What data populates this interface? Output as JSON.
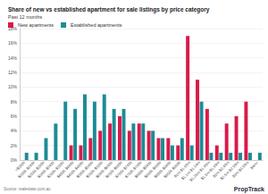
{
  "chart_data": {
    "type": "bar",
    "title": "Share of new vs established apartment for sale listings by price category",
    "subtitle": "Past 12 months",
    "annotations": [
      "Source: realestate.com.au",
      "PropTrack"
    ],
    "categories": [
      "<$200k",
      "$200k-$249k",
      "$250k-$299k",
      "$300k-$349k",
      "$350k-$399k",
      "$400k-$449k",
      "$450k-$499k",
      "$500k-$549k",
      "$550k-$599k",
      "$600k-$649k",
      "$650k-$699k",
      "$700k-$749k",
      "$750k-$799k",
      "$800k-$849k",
      "$850k-$899k",
      "$900k-$949k",
      "$950k-$999k",
      "$1m-$1.09m",
      "$1.1m-$1.24m",
      "$1.25m-$1.49m",
      "$1.5m-$1.99m",
      "$2m-$2.49m",
      "$2.5m-$2.99m",
      "$3m-$3.99m",
      "$4m+"
    ],
    "series": [
      {
        "name": "New apartments",
        "color": "#d91a4b",
        "values": [
          0,
          0,
          0,
          0,
          0,
          2,
          2,
          3,
          4,
          5,
          6,
          4,
          5,
          4,
          3,
          3,
          2,
          17,
          11,
          7,
          2,
          5,
          6,
          8,
          0
        ]
      },
      {
        "name": "Established apartments",
        "color": "#1c8c96",
        "values": [
          1,
          1,
          3,
          5,
          8,
          7,
          9,
          8,
          9,
          7,
          7,
          5,
          5,
          4,
          3,
          2,
          3,
          2,
          8,
          1,
          1,
          1,
          1,
          1,
          1
        ]
      }
    ],
    "ylim": [
      0,
      18
    ],
    "yticks": [
      {
        "value": 0,
        "label": "0%"
      },
      {
        "value": 2,
        "label": "2%"
      },
      {
        "value": 4,
        "label": "4%"
      },
      {
        "value": 6,
        "label": "6%"
      },
      {
        "value": 8,
        "label": "8%"
      },
      {
        "value": 10,
        "label": "10%"
      },
      {
        "value": 12,
        "label": "12%"
      },
      {
        "value": 14,
        "label": "14%"
      },
      {
        "value": 16,
        "label": "16%"
      },
      {
        "value": 18,
        "label": "18%"
      }
    ],
    "grid": true,
    "legend": "top-left"
  }
}
